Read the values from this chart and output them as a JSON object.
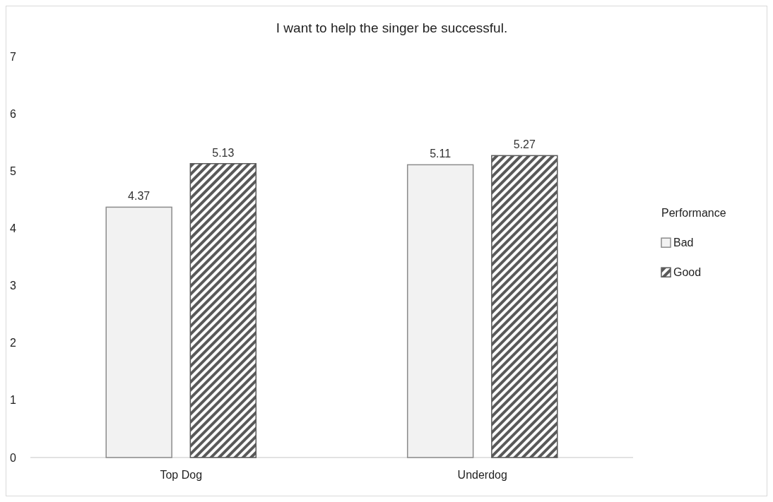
{
  "chart_data": {
    "type": "bar",
    "title": "I want to help the singer be successful.",
    "legend_title": "Performance",
    "categories": [
      "Top Dog",
      "Underdog"
    ],
    "series": [
      {
        "name": "Bad",
        "color": "#f2f2f2",
        "values": [
          4.37,
          5.11
        ]
      },
      {
        "name": "Good",
        "color": "#595959",
        "values": [
          5.13,
          5.27
        ]
      }
    ],
    "ylim": [
      0,
      7
    ],
    "yticks": [
      0,
      1,
      2,
      3,
      4,
      5,
      6,
      7
    ],
    "grid": false,
    "legend": "right",
    "data_labels": true
  }
}
